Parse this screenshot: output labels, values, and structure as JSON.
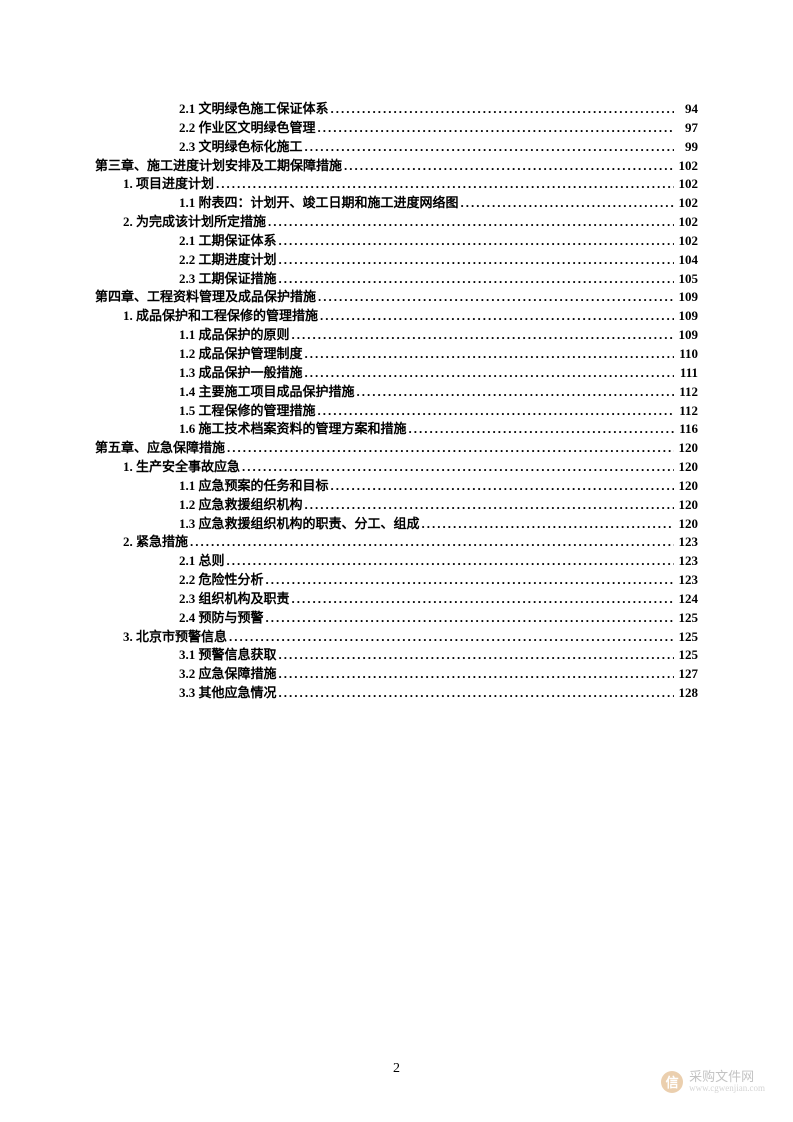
{
  "page_number": "2",
  "watermark": {
    "icon_text": "信",
    "main_text": "采购文件网",
    "sub_text": "www.cgwenjian.com"
  },
  "toc": [
    {
      "level": 3,
      "label": "2.1 文明绿色施工保证体系",
      "page": "94"
    },
    {
      "level": 3,
      "label": "2.2 作业区文明绿色管理",
      "page": "97"
    },
    {
      "level": 3,
      "label": "2.3 文明绿色标化施工",
      "page": "99"
    },
    {
      "level": 1,
      "label": "第三章、施工进度计划安排及工期保障措施",
      "page": "102"
    },
    {
      "level": 2,
      "label": "1. 项目进度计划",
      "page": "102"
    },
    {
      "level": 3,
      "label": "1.1 附表四：计划开、竣工日期和施工进度网络图",
      "page": "102"
    },
    {
      "level": 2,
      "label": "2. 为完成该计划所定措施",
      "page": "102"
    },
    {
      "level": 3,
      "label": "2.1 工期保证体系",
      "page": "102"
    },
    {
      "level": 3,
      "label": "2.2 工期进度计划",
      "page": "104"
    },
    {
      "level": 3,
      "label": "2.3 工期保证措施",
      "page": "105"
    },
    {
      "level": 1,
      "label": "第四章、工程资料管理及成品保护措施",
      "page": "109"
    },
    {
      "level": 2,
      "label": "1. 成品保护和工程保修的管理措施",
      "page": "109"
    },
    {
      "level": 3,
      "label": "1.1 成品保护的原则",
      "page": "109"
    },
    {
      "level": 3,
      "label": "1.2 成品保护管理制度",
      "page": "110"
    },
    {
      "level": 3,
      "label": "1.3 成品保护一般措施",
      "page": "111"
    },
    {
      "level": 3,
      "label": "1.4 主要施工项目成品保护措施",
      "page": "112"
    },
    {
      "level": 3,
      "label": "1.5 工程保修的管理措施",
      "page": "112"
    },
    {
      "level": 3,
      "label": "1.6 施工技术档案资料的管理方案和措施",
      "page": "116"
    },
    {
      "level": 1,
      "label": "第五章、应急保障措施",
      "page": "120"
    },
    {
      "level": 2,
      "label": "1. 生产安全事故应急",
      "page": "120"
    },
    {
      "level": 3,
      "label": "1.1 应急预案的任务和目标",
      "page": "120"
    },
    {
      "level": 3,
      "label": "1.2 应急救援组织机构",
      "page": "120"
    },
    {
      "level": 3,
      "label": "1.3 应急救援组织机构的职责、分工、组成",
      "page": "120"
    },
    {
      "level": 2,
      "label": "2. 紧急措施",
      "page": "123"
    },
    {
      "level": 3,
      "label": "2.1 总则",
      "page": "123"
    },
    {
      "level": 3,
      "label": "2.2 危险性分析",
      "page": "123"
    },
    {
      "level": 3,
      "label": "2.3 组织机构及职责",
      "page": "124"
    },
    {
      "level": 3,
      "label": "2.4 预防与预警",
      "page": "125"
    },
    {
      "level": 2,
      "label": "3. 北京市预警信息",
      "page": "125"
    },
    {
      "level": 3,
      "label": "3.1 预警信息获取",
      "page": "125"
    },
    {
      "level": 3,
      "label": "3.2 应急保障措施",
      "page": "127"
    },
    {
      "level": 3,
      "label": "3.3 其他应急情况",
      "page": "128"
    }
  ]
}
